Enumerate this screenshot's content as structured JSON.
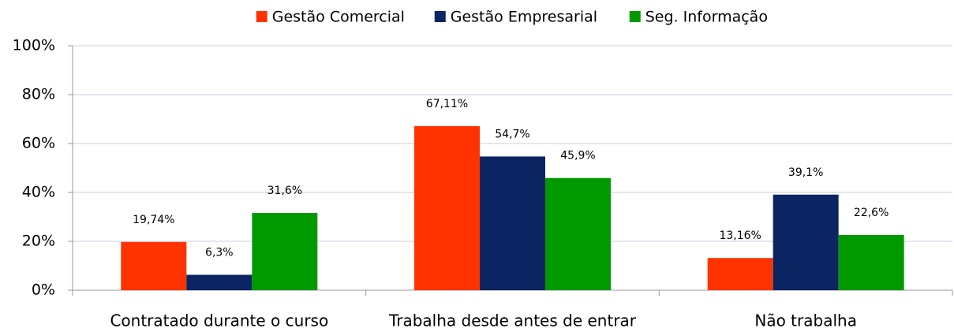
{
  "chart_data": {
    "type": "bar",
    "categories": [
      "Contratado durante o curso",
      "Trabalha desde antes de entrar",
      "Não trabalha"
    ],
    "series": [
      {
        "name": "Gestão Comercial",
        "color": "#ff3300",
        "values": [
          19.74,
          67.11,
          13.16
        ],
        "value_labels": [
          "19,74%",
          "67,11%",
          "13,16%"
        ]
      },
      {
        "name": "Gestão Empresarial",
        "color": "#0b2462",
        "values": [
          6.3,
          54.7,
          39.1
        ],
        "value_labels": [
          "6,3%",
          "54,7%",
          "39,1%"
        ]
      },
      {
        "name": "Seg. Informação",
        "color": "#009a00",
        "values": [
          31.6,
          45.9,
          22.6
        ],
        "value_labels": [
          "31,6%",
          "45,9%",
          "22,6%"
        ]
      }
    ],
    "ylim": [
      0,
      100
    ],
    "yticks": [
      {
        "value": 0,
        "label": "0%"
      },
      {
        "value": 20,
        "label": "20%"
      },
      {
        "value": 40,
        "label": "40%"
      },
      {
        "value": 60,
        "label": "60%"
      },
      {
        "value": 80,
        "label": "80%"
      },
      {
        "value": 100,
        "label": "100%"
      }
    ],
    "grid": true,
    "legend": "top"
  }
}
